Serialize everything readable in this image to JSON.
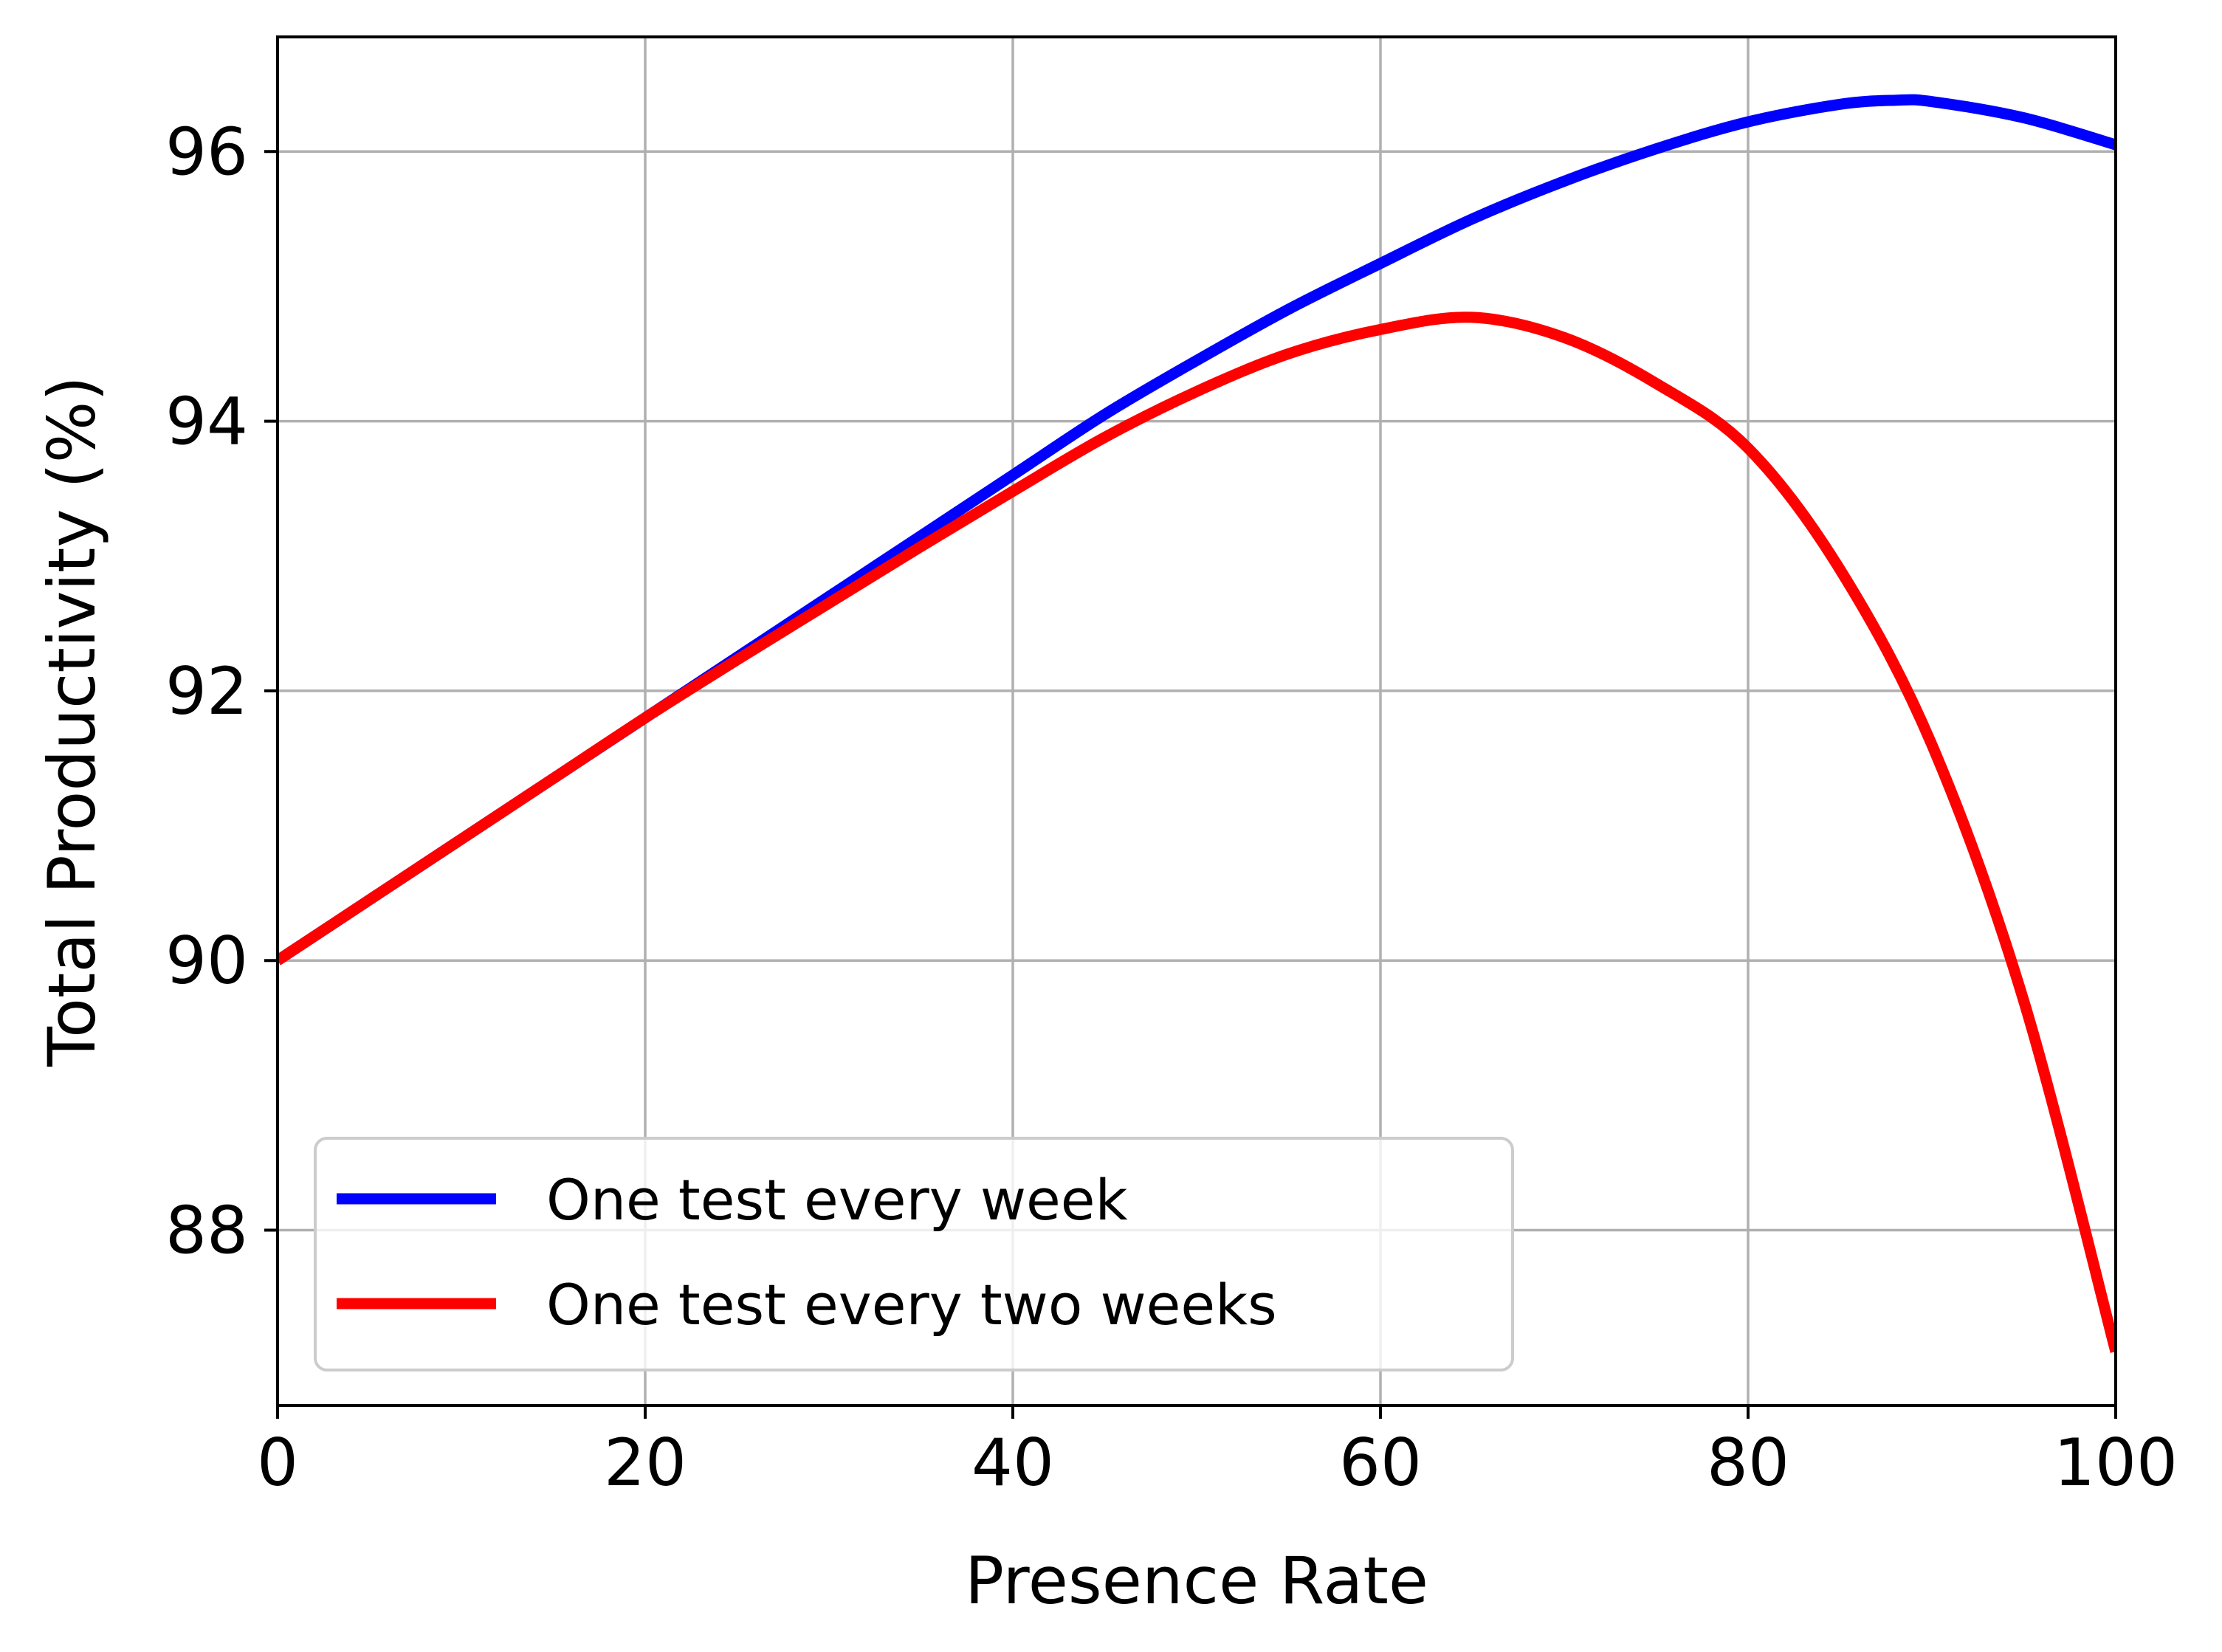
{
  "chart_data": {
    "type": "line",
    "title": "",
    "xlabel": "Presence Rate",
    "ylabel": "Total Productivity (%)",
    "xlim": [
      0,
      100
    ],
    "ylim": [
      86.7,
      96.85
    ],
    "xticks": [
      0,
      20,
      40,
      60,
      80,
      100
    ],
    "yticks": [
      88,
      90,
      92,
      94,
      96
    ],
    "x_tick_labels": [
      "0",
      "20",
      "40",
      "60",
      "80",
      "100"
    ],
    "y_tick_labels": [
      "88",
      "90",
      "92",
      "94",
      "96"
    ],
    "grid": true,
    "legend_position": "lower-left",
    "series": [
      {
        "name": "One test every week",
        "color": "#0000ff",
        "x": [
          0,
          5,
          10,
          15,
          20,
          25,
          30,
          35,
          40,
          45,
          50,
          55,
          60,
          65,
          70,
          75,
          80,
          85,
          88,
          90,
          95,
          100
        ],
        "y": [
          90.0,
          90.45,
          90.9,
          91.35,
          91.8,
          92.25,
          92.7,
          93.15,
          93.6,
          94.05,
          94.45,
          94.83,
          95.17,
          95.5,
          95.78,
          96.02,
          96.22,
          96.35,
          96.38,
          96.37,
          96.25,
          96.05
        ]
      },
      {
        "name": "One test every two weeks",
        "color": "#ff0000",
        "x": [
          0,
          5,
          10,
          15,
          20,
          25,
          30,
          35,
          40,
          45,
          50,
          55,
          60,
          65,
          70,
          75,
          80,
          85,
          90,
          95,
          100
        ],
        "y": [
          90.0,
          90.45,
          90.9,
          91.35,
          91.8,
          92.23,
          92.65,
          93.07,
          93.48,
          93.88,
          94.22,
          94.5,
          94.68,
          94.77,
          94.62,
          94.28,
          93.8,
          92.9,
          91.6,
          89.7,
          87.1
        ]
      }
    ]
  }
}
